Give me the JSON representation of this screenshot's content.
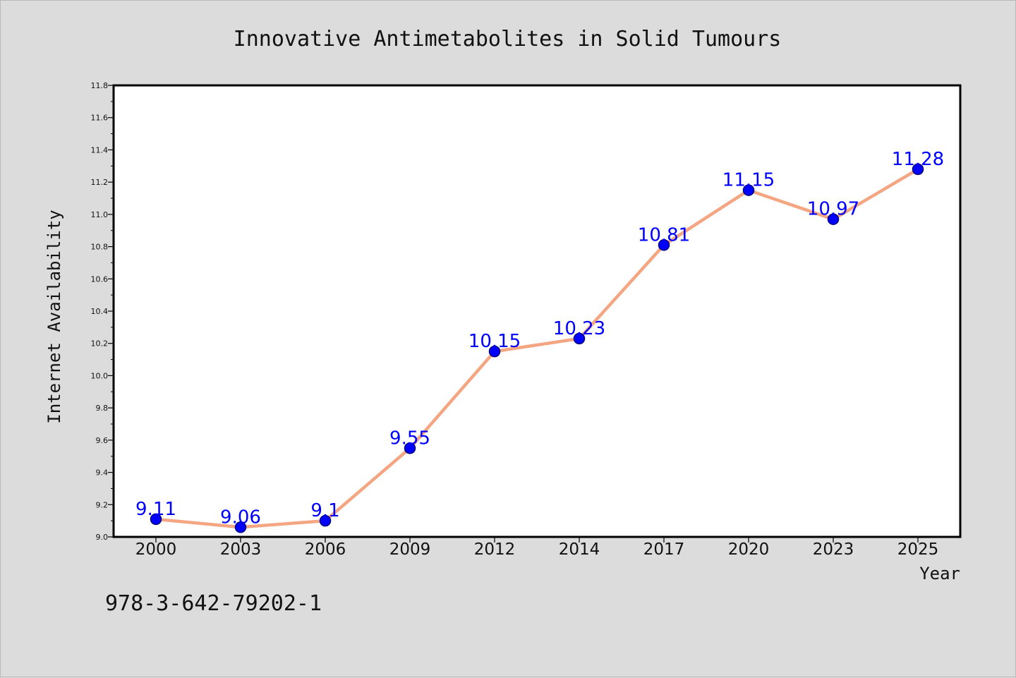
{
  "chart_data": {
    "type": "line",
    "title": "Innovative Antimetabolites in Solid Tumours",
    "xlabel": "Year",
    "ylabel": "Internet Availability",
    "categories": [
      "2000",
      "2003",
      "2006",
      "2009",
      "2012",
      "2014",
      "2017",
      "2020",
      "2023",
      "2025"
    ],
    "series": [
      {
        "values": [
          9.11,
          9.06,
          9.1,
          9.55,
          10.15,
          10.23,
          10.81,
          11.15,
          10.97,
          11.28
        ],
        "data_labels": [
          "9.11",
          "9.06",
          "9.1",
          "9.55",
          "10.15",
          "10.23",
          "10.81",
          "11.15",
          "10.97",
          "11.28"
        ]
      }
    ],
    "ylim": [
      9.0,
      11.8
    ],
    "yticks": [
      "9.0",
      "9.2",
      "9.4",
      "9.6",
      "9.8",
      "10.0",
      "10.2",
      "10.4",
      "10.6",
      "10.8",
      "11.0",
      "11.2",
      "11.4",
      "11.6",
      "11.8"
    ],
    "grid": false,
    "legend": "none",
    "colors": {
      "line": "#f4a582",
      "marker": "#0000ff",
      "marker_edge": "#000080",
      "data_label": "#0000ff",
      "background": "#dcdcdc",
      "plot_background": "#ffffff"
    }
  },
  "footnote": "978-3-642-79202-1"
}
